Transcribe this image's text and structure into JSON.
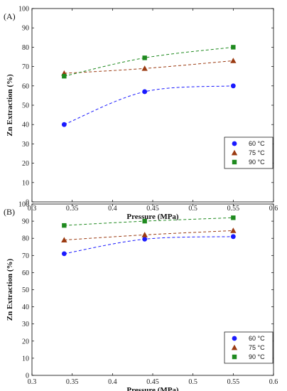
{
  "chart_data": [
    {
      "type": "scatter",
      "panel_label": "(A)",
      "xlabel": "Pressure (MPa)",
      "ylabel": "Zn Extraction (%)",
      "xlim": [
        0.3,
        0.6
      ],
      "ylim": [
        0,
        100
      ],
      "xticks": [
        "0.3",
        "0.35",
        "0.4",
        "0.45",
        "0.5",
        "0.55",
        "0.6"
      ],
      "yticks": [
        "0",
        "10",
        "20",
        "30",
        "40",
        "50",
        "60",
        "70",
        "80",
        "90",
        "100"
      ],
      "legend_position": "bottom-right",
      "x": [
        0.34,
        0.44,
        0.55
      ],
      "series": [
        {
          "name": "60 °C",
          "values": [
            40,
            57,
            60
          ],
          "color": "#1a1aff",
          "marker": "circle"
        },
        {
          "name": "75 °C",
          "values": [
            66.5,
            69,
            73
          ],
          "color": "#9b3b12",
          "marker": "triangle"
        },
        {
          "name": "90 °C",
          "values": [
            65,
            74.5,
            80
          ],
          "color": "#1f8a1f",
          "marker": "square"
        }
      ]
    },
    {
      "type": "scatter",
      "panel_label": "(B)",
      "xlabel": "Pressure (MPa)",
      "ylabel": "Zn Extraction (%)",
      "xlim": [
        0.3,
        0.6
      ],
      "ylim": [
        0,
        100
      ],
      "xticks": [
        "0.3",
        "0.35",
        "0.4",
        "0.45",
        "0.5",
        "0.55",
        "0.6"
      ],
      "yticks": [
        "0",
        "10",
        "20",
        "30",
        "40",
        "50",
        "60",
        "70",
        "80",
        "90",
        "100"
      ],
      "legend_position": "bottom-right",
      "x": [
        0.34,
        0.44,
        0.55
      ],
      "series": [
        {
          "name": "60 °C",
          "values": [
            71,
            79.5,
            81
          ],
          "color": "#1a1aff",
          "marker": "circle"
        },
        {
          "name": "75 °C",
          "values": [
            79,
            82,
            84.5
          ],
          "color": "#9b3b12",
          "marker": "triangle"
        },
        {
          "name": "90 °C",
          "values": [
            87.5,
            90,
            92
          ],
          "color": "#1f8a1f",
          "marker": "square"
        }
      ]
    }
  ]
}
